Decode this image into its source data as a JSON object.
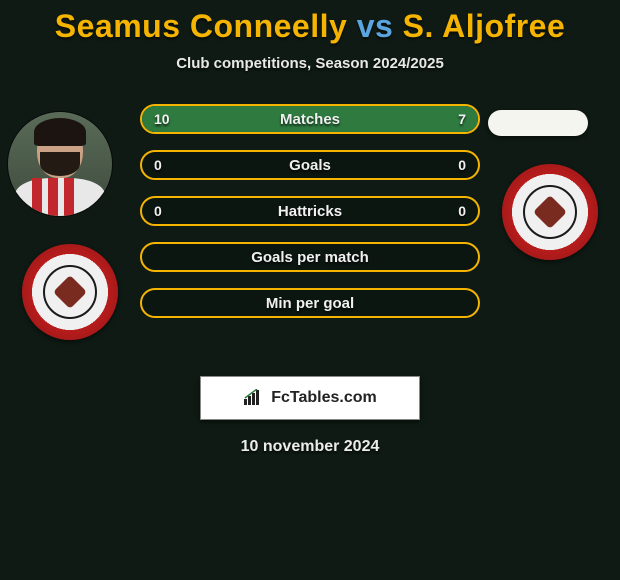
{
  "title": {
    "player1": "Seamus Conneelly",
    "vs": "vs",
    "player2": "S. Aljofree",
    "player1_color": "#f5b400",
    "vs_color": "#5aa5e0",
    "player2_color": "#f5b400"
  },
  "subtitle": "Club competitions, Season 2024/2025",
  "footer_date": "10 november 2024",
  "logo_text": "FcTables.com",
  "colors": {
    "background": "#0f1a14",
    "bar_border": "#f5b400",
    "bar_fill_left": "#2e7a3f",
    "bar_fill_right": "#2e7a3f",
    "text": "#f0f0f0"
  },
  "bars": [
    {
      "label": "Matches",
      "left_value": "10",
      "right_value": "7",
      "left_pct": 58.8,
      "right_pct": 41.2
    },
    {
      "label": "Goals",
      "left_value": "0",
      "right_value": "0",
      "left_pct": 0,
      "right_pct": 0
    },
    {
      "label": "Hattricks",
      "left_value": "0",
      "right_value": "0",
      "left_pct": 0,
      "right_pct": 0
    },
    {
      "label": "Goals per match",
      "left_value": "",
      "right_value": "",
      "left_pct": 0,
      "right_pct": 0
    },
    {
      "label": "Min per goal",
      "left_value": "",
      "right_value": "",
      "left_pct": 0,
      "right_pct": 0
    }
  ]
}
